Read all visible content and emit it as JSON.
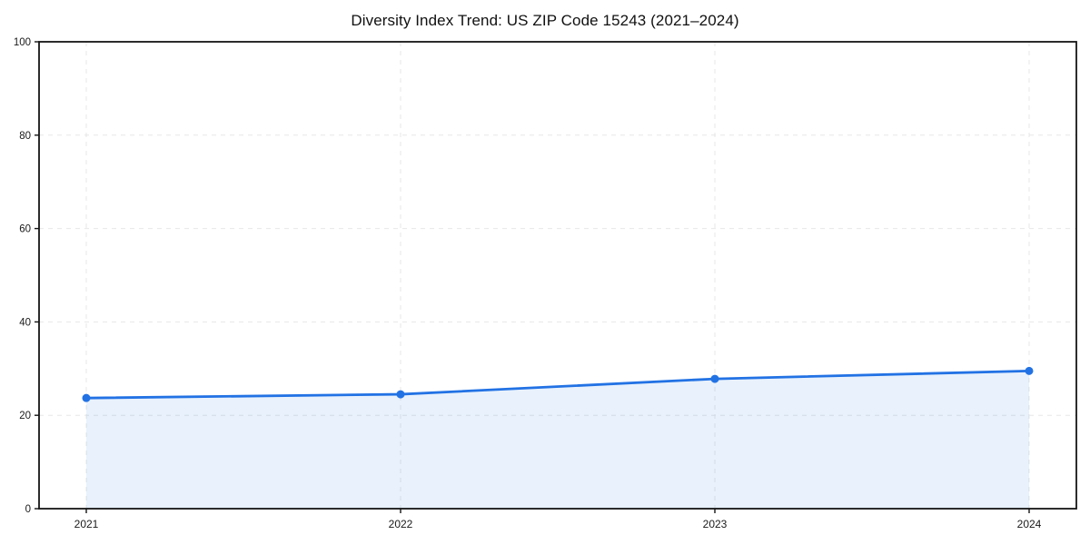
{
  "chart_data": {
    "type": "area",
    "title": "Diversity Index Trend: US ZIP Code 15243 (2021–2024)",
    "x": [
      "2021",
      "2022",
      "2023",
      "2024"
    ],
    "series": [
      {
        "name": "Diversity Index",
        "values": [
          23.7,
          24.5,
          27.8,
          29.5
        ]
      }
    ],
    "xlabel": "",
    "ylabel": "",
    "ylim": [
      0,
      100
    ],
    "yticks": [
      0,
      20,
      40,
      60,
      80,
      100
    ],
    "grid": "dashed",
    "legend": "none",
    "colors": {
      "line": "#2272e4",
      "marker": "#2272e4",
      "fill": "#2272e4",
      "fill_opacity": 0.1,
      "grid": "#e7e7e7",
      "spine": "#141414",
      "tick_text": "#1a1a1a"
    }
  }
}
